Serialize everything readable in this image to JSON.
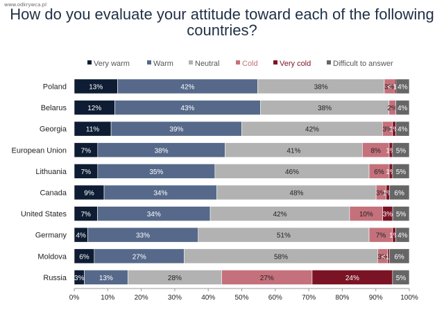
{
  "watermark": "www.odkrywca.pl",
  "chart_data": {
    "type": "stacked-bar-horizontal",
    "title": "How do you evaluate your attitude toward each of the following countries?",
    "legend_position": "top",
    "series": [
      {
        "name": "Very warm",
        "color": "#0e1d33"
      },
      {
        "name": "Warm",
        "color": "#56698a"
      },
      {
        "name": "Neutral",
        "color": "#b2b2b2"
      },
      {
        "name": "Cold",
        "color": "#c4717c"
      },
      {
        "name": "Very cold",
        "color": "#7a1425"
      },
      {
        "name": "Difficult to answer",
        "color": "#666666"
      }
    ],
    "categories": [
      "Poland",
      "Belarus",
      "Georgia",
      "European Union",
      "Lithuania",
      "Canada",
      "United States",
      "Germany",
      "Moldova",
      "Russia"
    ],
    "values": [
      [
        13,
        42,
        38,
        3,
        0.5,
        4
      ],
      [
        12,
        43,
        38,
        2,
        0,
        4
      ],
      [
        11,
        39,
        42,
        3,
        1,
        4
      ],
      [
        7,
        38,
        41,
        8,
        1,
        5
      ],
      [
        7,
        35,
        46,
        6,
        1,
        5
      ],
      [
        9,
        34,
        48,
        3,
        1,
        6
      ],
      [
        7,
        34,
        42,
        10,
        3,
        5
      ],
      [
        4,
        33,
        51,
        7,
        1,
        4
      ],
      [
        6,
        27,
        58,
        3,
        0.5,
        6
      ],
      [
        3,
        13,
        28,
        27,
        24,
        5
      ]
    ],
    "labels": [
      [
        "13%",
        "42%",
        "38%",
        "3%",
        "< 1%",
        "4%"
      ],
      [
        "12%",
        "43%",
        "38%",
        "2%",
        "",
        "4%"
      ],
      [
        "11%",
        "39%",
        "42%",
        "3%",
        "1%",
        "4%"
      ],
      [
        "7%",
        "38%",
        "41%",
        "8%",
        "1%",
        "5%"
      ],
      [
        "7%",
        "35%",
        "46%",
        "6%",
        "1%",
        "5%"
      ],
      [
        "9%",
        "34%",
        "48%",
        "3%",
        "1%",
        "6%"
      ],
      [
        "7%",
        "34%",
        "42%",
        "10%",
        "3%",
        "5%"
      ],
      [
        "4%",
        "33%",
        "51%",
        "7%",
        "1%",
        "4%"
      ],
      [
        "6%",
        "27%",
        "58%",
        "3%",
        "<1%",
        "6%"
      ],
      [
        "3%",
        "13%",
        "28%",
        "27%",
        "24%",
        "5%"
      ]
    ],
    "xlim": [
      0,
      100
    ],
    "xticks": [
      "0%",
      "10%",
      "20%",
      "30%",
      "40%",
      "50%",
      "60%",
      "70%",
      "80%",
      "90%",
      "100%"
    ],
    "grid": false
  }
}
